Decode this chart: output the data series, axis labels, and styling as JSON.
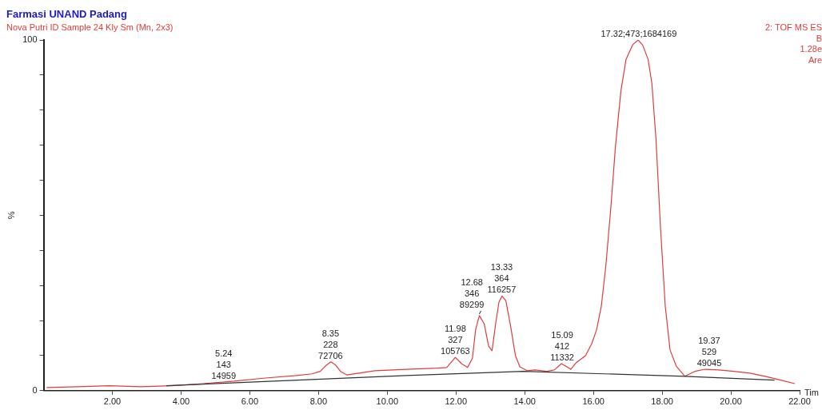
{
  "chart_data": {
    "type": "line",
    "title": "Farmasi UNAND Padang",
    "subtitle": "Nova Putri  ID Sample 24 Kly Sm (Mn, 2x3)",
    "xlabel": "Tim",
    "ylabel": "%",
    "xlim": [
      0,
      22
    ],
    "ylim": [
      0,
      100
    ],
    "xticks": [
      {
        "value": 2,
        "label": "2.00"
      },
      {
        "value": 4,
        "label": "4.00"
      },
      {
        "value": 6,
        "label": "6.00"
      },
      {
        "value": 8,
        "label": "8.00"
      },
      {
        "value": 10,
        "label": "10.00"
      },
      {
        "value": 12,
        "label": "12.00"
      },
      {
        "value": 14,
        "label": "14.00"
      },
      {
        "value": 16,
        "label": "16.00"
      },
      {
        "value": 18,
        "label": "18.00"
      },
      {
        "value": 20,
        "label": "20.00"
      },
      {
        "value": 22,
        "label": "22.00"
      }
    ],
    "yticks": [
      0,
      {
        "value": 10,
        "label": null
      },
      {
        "value": 20,
        "label": null
      },
      {
        "value": 30,
        "label": null
      },
      {
        "value": 40,
        "label": null
      },
      {
        "value": 50,
        "label": null
      },
      {
        "value": 60,
        "label": null
      },
      {
        "value": 70,
        "label": null
      },
      {
        "value": 80,
        "label": null
      },
      {
        "value": 90,
        "label": null
      },
      100
    ],
    "grid": false,
    "legend": false,
    "marker": "none",
    "line_style": "solid",
    "series": [
      {
        "color": "#e03c3c",
        "x": [
          0.09,
          1.0,
          1.91,
          2.82,
          3.73,
          4.64,
          5.55,
          6.45,
          7.36,
          7.82,
          8.05,
          8.23,
          8.36,
          8.5,
          8.64,
          8.82,
          9.18,
          9.64,
          10.55,
          11.45,
          11.73,
          11.98,
          12.16,
          12.34,
          12.48,
          12.57,
          12.68,
          12.82,
          12.95,
          13.05,
          13.16,
          13.25,
          13.34,
          13.45,
          13.59,
          13.73,
          13.86,
          14.07,
          14.3,
          14.64,
          14.86,
          15.07,
          15.23,
          15.34,
          15.5,
          15.77,
          15.95,
          16.09,
          16.23,
          16.36,
          16.5,
          16.64,
          16.8,
          16.95,
          17.14,
          17.3,
          17.43,
          17.59,
          17.7,
          17.82,
          17.95,
          18.09,
          18.23,
          18.41,
          18.66,
          18.95,
          19.25,
          19.64,
          20.09,
          20.55,
          21.0,
          21.45,
          21.86
        ],
        "values": [
          0.9,
          1.1,
          1.4,
          1.1,
          1.4,
          2.0,
          2.7,
          3.6,
          4.3,
          4.8,
          5.5,
          7.3,
          8.2,
          7.3,
          5.5,
          4.5,
          5.0,
          5.7,
          6.1,
          6.4,
          6.6,
          9.5,
          7.7,
          6.6,
          9.3,
          17.3,
          21.4,
          19.1,
          12.7,
          11.4,
          19.5,
          25.2,
          27.0,
          25.7,
          18.4,
          10.0,
          6.8,
          5.7,
          5.9,
          5.5,
          5.9,
          7.7,
          6.8,
          6.1,
          8.0,
          10.0,
          13.4,
          17.3,
          24.1,
          35.5,
          51.4,
          69.5,
          85.5,
          94.5,
          98.6,
          100,
          98.6,
          94.5,
          87.7,
          71.8,
          46.8,
          24.1,
          11.6,
          7.0,
          4.1,
          5.5,
          6.1,
          5.9,
          5.5,
          5.0,
          4.1,
          3.0,
          2.0
        ]
      },
      {
        "color": "#333333",
        "x": [
          3.57,
          10.55,
          13.95,
          18.66,
          21.27
        ],
        "values": [
          1.4,
          4.3,
          5.5,
          4.1,
          3.0
        ]
      }
    ],
    "annotations": [
      "2: TOF MS ES",
      "B",
      "1.28e",
      "Are",
      {
        "text": "5.24\n143\n14959",
        "x": 5.24,
        "y": 2.5
      },
      {
        "text": "8.35\n228\n72706",
        "x": 8.35,
        "y": 8.2
      },
      {
        "text": "11.98\n327\n105763",
        "x": 11.98,
        "y": 9.5
      },
      {
        "text": "12.68\n346\n89299",
        "x": 12.68,
        "y": 21.4
      },
      {
        "text": "13.33\n364\n116257",
        "x": 13.33,
        "y": 27.0
      },
      {
        "text": "15.09\n412\n11332",
        "x": 15.09,
        "y": 7.7
      },
      {
        "text": "17.32;473;1684169",
        "x": 17.32,
        "y": 100
      },
      {
        "text": "19.37\n529\n49045",
        "x": 19.37,
        "y": 6.1
      }
    ]
  }
}
